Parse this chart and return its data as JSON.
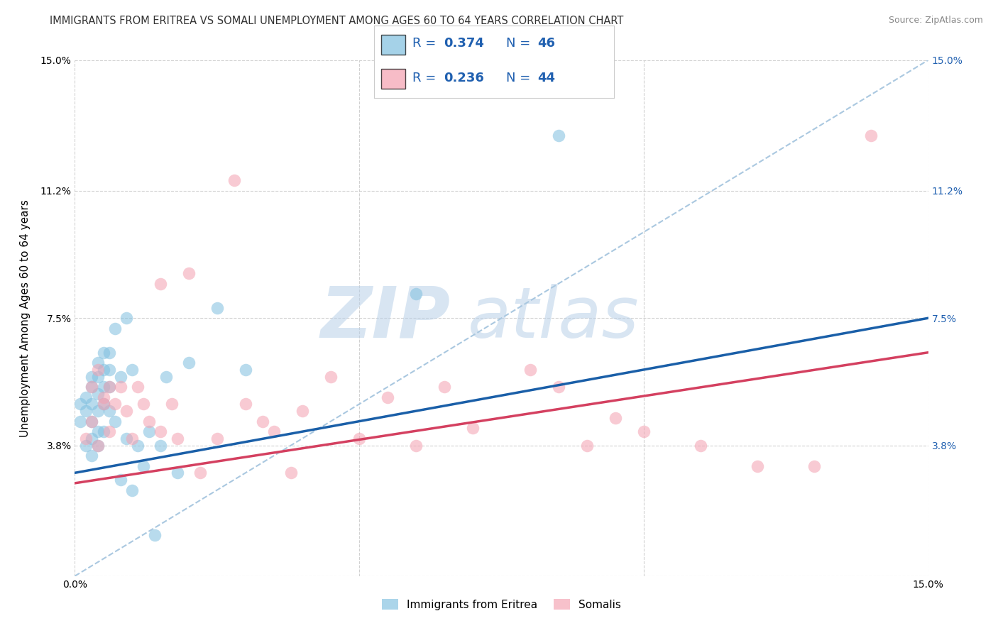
{
  "title": "IMMIGRANTS FROM ERITREA VS SOMALI UNEMPLOYMENT AMONG AGES 60 TO 64 YEARS CORRELATION CHART",
  "source": "Source: ZipAtlas.com",
  "ylabel": "Unemployment Among Ages 60 to 64 years",
  "xlim": [
    0.0,
    0.15
  ],
  "ylim": [
    0.0,
    0.15
  ],
  "ytick_positions": [
    0.0,
    0.038,
    0.075,
    0.112,
    0.15
  ],
  "ytick_labels_left": [
    "",
    "3.8%",
    "7.5%",
    "11.2%",
    "15.0%"
  ],
  "ytick_labels_right": [
    "",
    "3.8%",
    "7.5%",
    "11.2%",
    "15.0%"
  ],
  "xtick_positions": [
    0.0,
    0.05,
    0.1,
    0.15
  ],
  "xtick_labels": [
    "0.0%",
    "",
    "",
    "15.0%"
  ],
  "blue_color": "#7fbfdf",
  "pink_color": "#f4a0b0",
  "trendline_blue": "#1a5fa8",
  "trendline_pink": "#d44060",
  "diagonal_color": "#aac8e0",
  "r_n_color": "#2060b0",
  "background_color": "#ffffff",
  "grid_color": "#cccccc",
  "eritrea_x": [
    0.001,
    0.001,
    0.002,
    0.002,
    0.002,
    0.003,
    0.003,
    0.003,
    0.003,
    0.003,
    0.003,
    0.004,
    0.004,
    0.004,
    0.004,
    0.004,
    0.004,
    0.005,
    0.005,
    0.005,
    0.005,
    0.005,
    0.006,
    0.006,
    0.006,
    0.006,
    0.007,
    0.007,
    0.008,
    0.008,
    0.009,
    0.009,
    0.01,
    0.01,
    0.011,
    0.012,
    0.013,
    0.014,
    0.015,
    0.016,
    0.018,
    0.02,
    0.025,
    0.03,
    0.06,
    0.085
  ],
  "eritrea_y": [
    0.05,
    0.045,
    0.052,
    0.048,
    0.038,
    0.058,
    0.055,
    0.05,
    0.045,
    0.04,
    0.035,
    0.062,
    0.058,
    0.053,
    0.048,
    0.042,
    0.038,
    0.065,
    0.06,
    0.055,
    0.05,
    0.042,
    0.065,
    0.06,
    0.055,
    0.048,
    0.072,
    0.045,
    0.058,
    0.028,
    0.075,
    0.04,
    0.06,
    0.025,
    0.038,
    0.032,
    0.042,
    0.012,
    0.038,
    0.058,
    0.03,
    0.062,
    0.078,
    0.06,
    0.082,
    0.128
  ],
  "somali_x": [
    0.002,
    0.003,
    0.003,
    0.004,
    0.004,
    0.005,
    0.005,
    0.006,
    0.006,
    0.007,
    0.008,
    0.009,
    0.01,
    0.011,
    0.012,
    0.013,
    0.015,
    0.015,
    0.017,
    0.018,
    0.02,
    0.022,
    0.025,
    0.028,
    0.03,
    0.033,
    0.035,
    0.038,
    0.04,
    0.045,
    0.05,
    0.055,
    0.06,
    0.065,
    0.07,
    0.08,
    0.085,
    0.09,
    0.095,
    0.1,
    0.11,
    0.12,
    0.13,
    0.14
  ],
  "somali_y": [
    0.04,
    0.055,
    0.045,
    0.06,
    0.038,
    0.05,
    0.052,
    0.042,
    0.055,
    0.05,
    0.055,
    0.048,
    0.04,
    0.055,
    0.05,
    0.045,
    0.042,
    0.085,
    0.05,
    0.04,
    0.088,
    0.03,
    0.04,
    0.115,
    0.05,
    0.045,
    0.042,
    0.03,
    0.048,
    0.058,
    0.04,
    0.052,
    0.038,
    0.055,
    0.043,
    0.06,
    0.055,
    0.038,
    0.046,
    0.042,
    0.038,
    0.032,
    0.032,
    0.128
  ],
  "trendline_blue_start": 0.03,
  "trendline_blue_end": 0.075,
  "trendline_pink_start": 0.027,
  "trendline_pink_end": 0.065,
  "title_fontsize": 10.5,
  "tick_fontsize": 10,
  "legend_fontsize": 13
}
